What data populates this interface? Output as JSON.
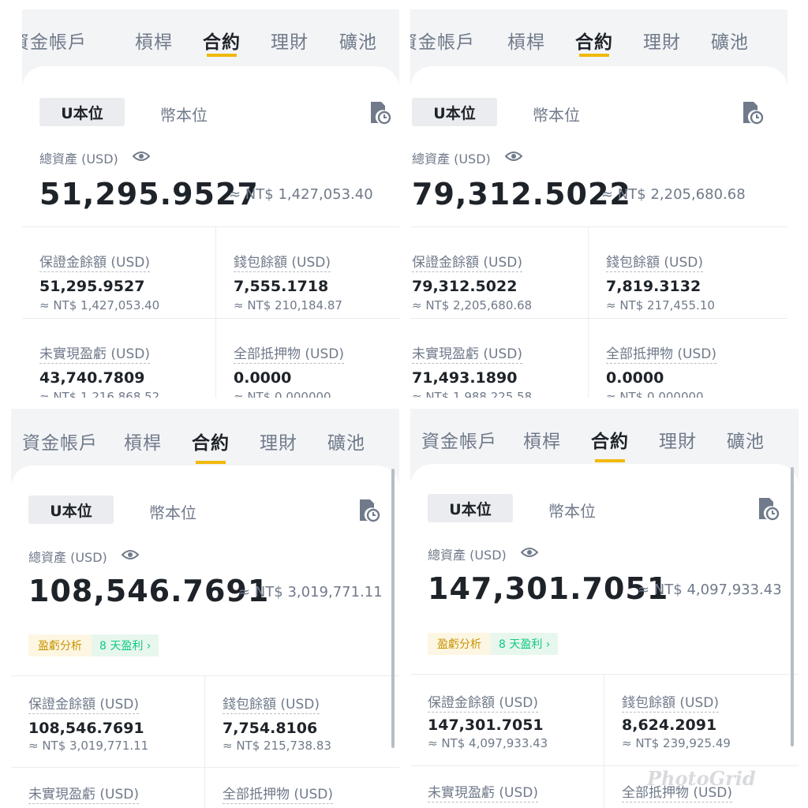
{
  "nav": {
    "tab_funding": "資金帳戶",
    "tab_margin": "槓桿",
    "tab_futures": "合約",
    "tab_earn": "理財",
    "tab_pool": "礦池"
  },
  "segment": {
    "usdm": "U本位",
    "coinm": "幣本位"
  },
  "labels": {
    "total_assets": "總資產 (USD)",
    "margin_balance": "保證金餘額 (USD)",
    "wallet_balance": "錢包餘額 (USD)",
    "unrealized_pnl": "未實現盈虧 (USD)",
    "total_collateral": "全部抵押物 (USD)",
    "pnl_analysis": "盈虧分析",
    "pnl_days": "8 天盈利 ›"
  },
  "icons": {
    "history": "history-clock-icon",
    "eye": "eye-icon",
    "chevron": "chevron-right-icon"
  },
  "colors": {
    "accent": "#f0b90b",
    "profit": "#0ecb81",
    "text": "#1e2329",
    "muted": "#707a8a"
  },
  "panels": [
    {
      "total": "51,295.9527",
      "total_approx": "≈ NT$ 1,427,053.40",
      "margin": "51,295.9527",
      "margin_approx": "≈ NT$ 1,427,053.40",
      "wallet": "7,555.1718",
      "wallet_approx": "≈ NT$ 210,184.87",
      "upnl": "43,740.7809",
      "upnl_approx": "≈ NT$ 1,216,868.52",
      "collateral": "0.0000",
      "collateral_approx": "≈ NT$ 0.000000"
    },
    {
      "total": "79,312.5022",
      "total_approx": "≈ NT$ 2,205,680.68",
      "margin": "79,312.5022",
      "margin_approx": "≈ NT$ 2,205,680.68",
      "wallet": "7,819.3132",
      "wallet_approx": "≈ NT$ 217,455.10",
      "upnl": "71,493.1890",
      "upnl_approx": "≈ NT$ 1,988,225.58",
      "collateral": "0.0000",
      "collateral_approx": "≈ NT$ 0.000000"
    },
    {
      "total": "108,546.7691",
      "total_approx": "≈ NT$ 3,019,771.11",
      "margin": "108,546.7691",
      "margin_approx": "≈ NT$ 3,019,771.11",
      "wallet": "7,754.8106",
      "wallet_approx": "≈ NT$ 215,738.83"
    },
    {
      "total": "147,301.7051",
      "total_approx": "≈ NT$ 4,097,933.43",
      "margin": "147,301.7051",
      "margin_approx": "≈ NT$ 4,097,933.43",
      "wallet": "8,624.2091",
      "wallet_approx": "≈ NT$ 239,925.49"
    }
  ],
  "watermark": "PhotoGrid"
}
